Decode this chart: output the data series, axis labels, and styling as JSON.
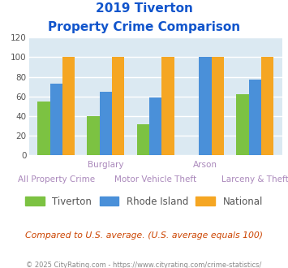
{
  "title_line1": "2019 Tiverton",
  "title_line2": "Property Crime Comparison",
  "cat_labels_top": [
    [
      "Burglary",
      1
    ],
    [
      "Arson",
      3
    ]
  ],
  "cat_labels_bottom": [
    [
      "All Property Crime",
      0
    ],
    [
      "Motor Vehicle Theft",
      2
    ],
    [
      "Larceny & Theft",
      4
    ]
  ],
  "series": {
    "Tiverton": [
      55,
      40,
      32,
      0,
      62
    ],
    "Rhode Island": [
      73,
      65,
      59,
      100,
      77
    ],
    "National": [
      100,
      100,
      100,
      100,
      100
    ]
  },
  "colors": {
    "Tiverton": "#7CC242",
    "Rhode Island": "#4A90D9",
    "National": "#F5A623"
  },
  "ylim": [
    0,
    120
  ],
  "yticks": [
    0,
    20,
    40,
    60,
    80,
    100,
    120
  ],
  "background_color": "#DBE9F2",
  "grid_color": "#FFFFFF",
  "title_color": "#1155CC",
  "label_color": "#AA88BB",
  "footer_text": "Compared to U.S. average. (U.S. average equals 100)",
  "footer_color": "#CC4400",
  "copyright_text": "© 2025 CityRating.com - https://www.cityrating.com/crime-statistics/",
  "copyright_color": "#888888",
  "bar_width": 0.25
}
